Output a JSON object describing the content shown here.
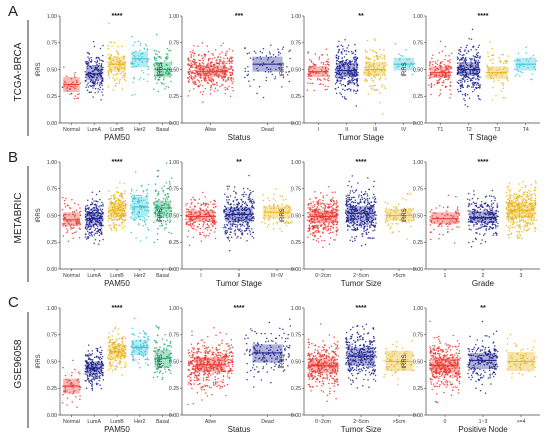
{
  "figure": {
    "rows": [
      {
        "letter": "A",
        "label": "TCGA-BRCA"
      },
      {
        "letter": "B",
        "label": "METABRIC"
      },
      {
        "letter": "C",
        "label": "GSE96058"
      }
    ],
    "ylabel": "IRRS",
    "yticks": [
      "0.00",
      "0.25",
      "0.50",
      "0.75",
      "1.00"
    ]
  },
  "colors": {
    "red": "#e8322b",
    "navy": "#1a1f8c",
    "gold": "#e8b012",
    "cyan": "#2ec3d8",
    "green": "#1aa86a"
  },
  "chart_data": [
    {
      "type": "scatter",
      "row": 0,
      "col": 0,
      "xlabel": "PAM50",
      "significance": "****",
      "ylim": [
        0,
        1
      ],
      "yticks": [
        0,
        0.25,
        0.5,
        0.75,
        1.0
      ],
      "categories": [
        "Normal",
        "LumA",
        "LumB",
        "Her2",
        "Basal"
      ],
      "colors": [
        "red",
        "navy",
        "gold",
        "cyan",
        "green"
      ],
      "median": [
        0.36,
        0.46,
        0.55,
        0.6,
        0.5
      ],
      "q1": [
        0.29,
        0.4,
        0.48,
        0.52,
        0.43
      ],
      "q3": [
        0.43,
        0.53,
        0.62,
        0.67,
        0.57
      ],
      "spread": [
        0.08,
        0.1,
        0.1,
        0.1,
        0.1
      ],
      "n": [
        40,
        200,
        110,
        60,
        90
      ]
    },
    {
      "type": "scatter",
      "row": 0,
      "col": 1,
      "xlabel": "Status",
      "significance": "***",
      "ylim": [
        0,
        1
      ],
      "yticks": [
        0,
        0.25,
        0.5,
        0.75,
        1.0
      ],
      "categories": [
        "Alive",
        "Dead"
      ],
      "colors": [
        "red",
        "navy"
      ],
      "median": [
        0.48,
        0.55
      ],
      "q1": [
        0.43,
        0.48
      ],
      "q3": [
        0.54,
        0.62
      ],
      "spread": [
        0.1,
        0.11
      ],
      "n": [
        420,
        80
      ]
    },
    {
      "type": "scatter",
      "row": 0,
      "col": 2,
      "xlabel": "Tumor Stage",
      "significance": "**",
      "ylim": [
        0,
        1
      ],
      "yticks": [
        0,
        0.25,
        0.5,
        0.75,
        1.0
      ],
      "categories": [
        "I",
        "II",
        "III",
        "IV"
      ],
      "colors": [
        "red",
        "navy",
        "gold",
        "cyan"
      ],
      "median": [
        0.48,
        0.49,
        0.5,
        0.55
      ],
      "q1": [
        0.43,
        0.43,
        0.44,
        0.49
      ],
      "q3": [
        0.53,
        0.56,
        0.57,
        0.61
      ],
      "spread": [
        0.09,
        0.11,
        0.11,
        0.08
      ],
      "n": [
        90,
        280,
        120,
        18
      ]
    },
    {
      "type": "scatter",
      "row": 0,
      "col": 3,
      "xlabel": "T Stage",
      "significance": "****",
      "ylim": [
        0,
        1
      ],
      "yticks": [
        0,
        0.25,
        0.5,
        0.75,
        1.0
      ],
      "categories": [
        "T1",
        "T2",
        "T3",
        "T4"
      ],
      "colors": [
        "red",
        "navy",
        "gold",
        "cyan"
      ],
      "median": [
        0.47,
        0.5,
        0.47,
        0.55
      ],
      "q1": [
        0.42,
        0.44,
        0.41,
        0.49
      ],
      "q3": [
        0.53,
        0.57,
        0.53,
        0.61
      ],
      "spread": [
        0.09,
        0.11,
        0.1,
        0.08
      ],
      "n": [
        140,
        290,
        70,
        35
      ]
    },
    {
      "type": "scatter",
      "row": 1,
      "col": 0,
      "xlabel": "PAM50",
      "significance": "****",
      "ylim": [
        0,
        1
      ],
      "yticks": [
        0,
        0.25,
        0.5,
        0.75,
        1.0
      ],
      "categories": [
        "Normal",
        "LumA",
        "LumB",
        "Her2",
        "Basal"
      ],
      "colors": [
        "red",
        "navy",
        "gold",
        "cyan",
        "green"
      ],
      "median": [
        0.46,
        0.47,
        0.55,
        0.58,
        0.57
      ],
      "q1": [
        0.4,
        0.41,
        0.48,
        0.49,
        0.48
      ],
      "q3": [
        0.53,
        0.53,
        0.62,
        0.67,
        0.64
      ],
      "spread": [
        0.09,
        0.09,
        0.1,
        0.12,
        0.12
      ],
      "n": [
        80,
        260,
        200,
        110,
        120
      ]
    },
    {
      "type": "scatter",
      "row": 1,
      "col": 1,
      "xlabel": "Tumor Stage",
      "significance": "**",
      "ylim": [
        0,
        1
      ],
      "yticks": [
        0,
        0.25,
        0.5,
        0.75,
        1.0
      ],
      "categories": [
        "I",
        "II",
        "III~IV"
      ],
      "colors": [
        "red",
        "navy",
        "gold"
      ],
      "median": [
        0.49,
        0.51,
        0.53
      ],
      "q1": [
        0.44,
        0.44,
        0.47
      ],
      "q3": [
        0.55,
        0.58,
        0.59
      ],
      "spread": [
        0.09,
        0.11,
        0.09
      ],
      "n": [
        200,
        320,
        70
      ]
    },
    {
      "type": "scatter",
      "row": 1,
      "col": 2,
      "xlabel": "Tumor Size",
      "significance": "****",
      "ylim": [
        0,
        1
      ],
      "yticks": [
        0,
        0.25,
        0.5,
        0.75,
        1.0
      ],
      "categories": [
        "0~2cm",
        "2~5cm",
        ">5cm"
      ],
      "colors": [
        "red",
        "navy",
        "gold"
      ],
      "median": [
        0.49,
        0.52,
        0.5
      ],
      "q1": [
        0.43,
        0.45,
        0.45
      ],
      "q3": [
        0.55,
        0.59,
        0.56
      ],
      "spread": [
        0.1,
        0.11,
        0.09
      ],
      "n": [
        340,
        380,
        70
      ]
    },
    {
      "type": "scatter",
      "row": 1,
      "col": 3,
      "xlabel": "Grade",
      "significance": "****",
      "ylim": [
        0,
        1
      ],
      "yticks": [
        0,
        0.25,
        0.5,
        0.75,
        1.0
      ],
      "categories": [
        "1",
        "2",
        "3"
      ],
      "colors": [
        "red",
        "navy",
        "gold"
      ],
      "median": [
        0.47,
        0.48,
        0.55
      ],
      "q1": [
        0.42,
        0.43,
        0.48
      ],
      "q3": [
        0.53,
        0.54,
        0.62
      ],
      "spread": [
        0.08,
        0.09,
        0.11
      ],
      "n": [
        80,
        260,
        360
      ]
    },
    {
      "type": "scatter",
      "row": 2,
      "col": 0,
      "xlabel": "PAM50",
      "significance": "****",
      "ylim": [
        0,
        1
      ],
      "yticks": [
        0,
        0.25,
        0.5,
        0.75,
        1.0
      ],
      "categories": [
        "Normal",
        "LumA",
        "LumB",
        "Her2",
        "Basal"
      ],
      "colors": [
        "red",
        "navy",
        "gold",
        "cyan",
        "green"
      ],
      "median": [
        0.27,
        0.44,
        0.59,
        0.63,
        0.53
      ],
      "q1": [
        0.2,
        0.38,
        0.52,
        0.56,
        0.44
      ],
      "q3": [
        0.34,
        0.5,
        0.66,
        0.7,
        0.61
      ],
      "spread": [
        0.09,
        0.09,
        0.09,
        0.09,
        0.12
      ],
      "n": [
        50,
        220,
        160,
        90,
        90
      ]
    },
    {
      "type": "scatter",
      "row": 2,
      "col": 1,
      "xlabel": "Status",
      "significance": "****",
      "ylim": [
        0,
        1
      ],
      "yticks": [
        0,
        0.25,
        0.5,
        0.75,
        1.0
      ],
      "categories": [
        "Alive",
        "Dead"
      ],
      "colors": [
        "red",
        "navy"
      ],
      "median": [
        0.47,
        0.58
      ],
      "q1": [
        0.4,
        0.49
      ],
      "q3": [
        0.54,
        0.66
      ],
      "spread": [
        0.11,
        0.12
      ],
      "n": [
        460,
        150
      ]
    },
    {
      "type": "scatter",
      "row": 2,
      "col": 2,
      "xlabel": "Tumor Size",
      "significance": "****",
      "ylim": [
        0,
        1
      ],
      "yticks": [
        0,
        0.25,
        0.5,
        0.75,
        1.0
      ],
      "categories": [
        "0~2cm",
        "2~5cm",
        ">5cm"
      ],
      "colors": [
        "red",
        "navy",
        "gold"
      ],
      "median": [
        0.46,
        0.55,
        0.5
      ],
      "q1": [
        0.39,
        0.46,
        0.41
      ],
      "q3": [
        0.53,
        0.63,
        0.6
      ],
      "spread": [
        0.11,
        0.12,
        0.11
      ],
      "n": [
        330,
        300,
        60
      ]
    },
    {
      "type": "scatter",
      "row": 2,
      "col": 3,
      "xlabel": "Positive Node",
      "significance": "**",
      "ylim": [
        0,
        1
      ],
      "yticks": [
        0,
        0.25,
        0.5,
        0.75,
        1.0
      ],
      "categories": [
        "0",
        "1~3",
        ">=4"
      ],
      "colors": [
        "red",
        "navy",
        "gold"
      ],
      "median": [
        0.46,
        0.51,
        0.5
      ],
      "q1": [
        0.39,
        0.43,
        0.41
      ],
      "q3": [
        0.54,
        0.58,
        0.59
      ],
      "spread": [
        0.11,
        0.11,
        0.11
      ],
      "n": [
        380,
        200,
        60
      ]
    }
  ]
}
